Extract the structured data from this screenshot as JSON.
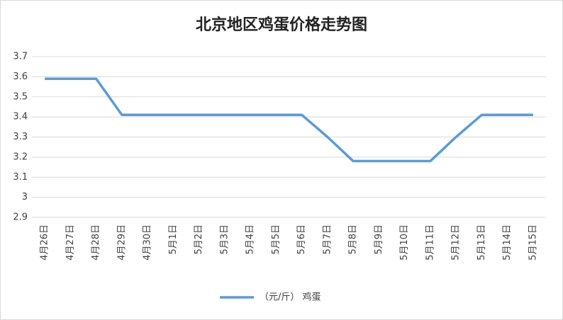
{
  "chart_data": {
    "type": "line",
    "title": "北京地区鸡蛋价格走势图",
    "categories": [
      "4月26日",
      "4月27日",
      "4月28日",
      "4月29日",
      "4月30日",
      "5月1日",
      "5月2日",
      "5月3日",
      "5月4日",
      "5月5日",
      "5月6日",
      "5月7日",
      "5月8日",
      "5月9日",
      "5月10日",
      "5月11日",
      "5月12日",
      "5月13日",
      "5月14日",
      "5月15日"
    ],
    "series": [
      {
        "name": "（元/斤） 鸡蛋",
        "color": "#5b9bd5",
        "values": [
          3.59,
          3.59,
          3.59,
          3.41,
          3.41,
          3.41,
          3.41,
          3.41,
          3.41,
          3.41,
          3.41,
          3.3,
          3.18,
          3.18,
          3.18,
          3.18,
          3.3,
          3.41,
          3.41,
          3.41
        ]
      }
    ],
    "ylim": [
      2.9,
      3.7
    ],
    "yticks": [
      2.9,
      3,
      3.1,
      3.2,
      3.3,
      3.4,
      3.5,
      3.6,
      3.7
    ],
    "grid": true,
    "legend": "bottom"
  }
}
